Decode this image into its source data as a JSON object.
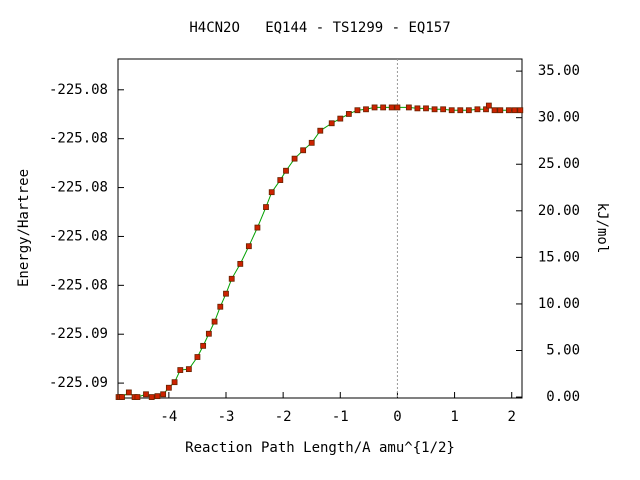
{
  "chart_data": {
    "type": "line",
    "title": "H4CN2O   EQ144 - TS1299 - EQ157",
    "x_label": "Reaction Path Length/A amu^{1/2}",
    "y_label": "Energy/Hartree",
    "y2_label": "kJ/mol",
    "x": [
      -4.88,
      -4.85,
      -4.82,
      -4.7,
      -4.6,
      -4.55,
      -4.4,
      -4.3,
      -4.2,
      -4.1,
      -4.0,
      -3.9,
      -3.8,
      -3.65,
      -3.5,
      -3.4,
      -3.3,
      -3.2,
      -3.1,
      -3.0,
      -2.9,
      -2.75,
      -2.6,
      -2.45,
      -2.3,
      -2.2,
      -2.05,
      -1.95,
      -1.8,
      -1.65,
      -1.5,
      -1.35,
      -1.15,
      -1.0,
      -0.85,
      -0.7,
      -0.55,
      -0.4,
      -0.25,
      -0.1,
      0.0,
      0.2,
      0.35,
      0.5,
      0.65,
      0.8,
      0.95,
      1.1,
      1.25,
      1.4,
      1.55,
      1.6,
      1.7,
      1.8,
      1.95,
      2.05,
      2.15
    ],
    "series": [
      {
        "name": "kJ/mol",
        "axis": "y2",
        "color": "#00a000",
        "marker_color": "#cc2200",
        "values": [
          0.0,
          0.0,
          0.0,
          0.5,
          0.0,
          0.0,
          0.3,
          0.0,
          0.1,
          0.3,
          1.0,
          1.6,
          2.9,
          3.0,
          4.3,
          5.5,
          6.8,
          8.1,
          9.7,
          11.1,
          12.7,
          14.3,
          16.2,
          18.2,
          20.4,
          22.0,
          23.3,
          24.3,
          25.6,
          26.5,
          27.3,
          28.6,
          29.4,
          29.9,
          30.4,
          30.8,
          30.9,
          31.1,
          31.1,
          31.1,
          31.1,
          31.1,
          31.0,
          31.0,
          30.9,
          30.9,
          30.8,
          30.8,
          30.8,
          30.9,
          30.9,
          31.3,
          30.8,
          30.8,
          30.8,
          30.8,
          30.8
        ]
      }
    ],
    "xlim": [
      -4.89,
      2.18
    ],
    "xticks": [
      -4,
      -3,
      -2,
      -1,
      0,
      1,
      2
    ],
    "ylim": [
      -225.08861,
      -225.07474
    ],
    "yticks": [
      {
        "value": -225.088,
        "label": "-225.09"
      },
      {
        "value": -225.086,
        "label": "-225.09"
      },
      {
        "value": -225.084,
        "label": "-225.08"
      },
      {
        "value": -225.082,
        "label": "-225.08"
      },
      {
        "value": -225.08,
        "label": "-225.08"
      },
      {
        "value": -225.078,
        "label": "-225.08"
      },
      {
        "value": -225.076,
        "label": "-225.08"
      }
    ],
    "y2lim": [
      -0.1,
      36.3
    ],
    "y2ticks": [
      {
        "value": 0,
        "label": "0.00"
      },
      {
        "value": 5,
        "label": "5.00"
      },
      {
        "value": 10,
        "label": "10.00"
      },
      {
        "value": 15,
        "label": "15.00"
      },
      {
        "value": 20,
        "label": "20.00"
      },
      {
        "value": 25,
        "label": "25.00"
      },
      {
        "value": 30,
        "label": "30.00"
      },
      {
        "value": 35,
        "label": "35.00"
      }
    ]
  }
}
